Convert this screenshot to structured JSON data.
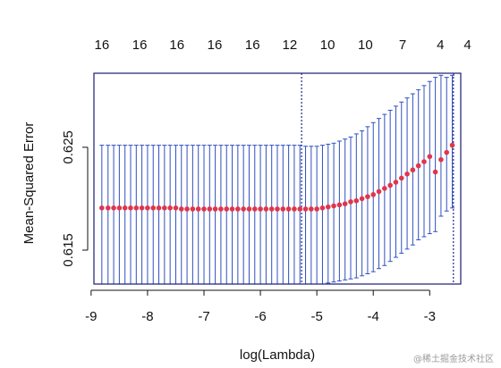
{
  "chart_data": {
    "type": "scatter",
    "xlabel": "log(Lambda)",
    "ylabel": "Mean-Squared Error",
    "xlim": [
      -8.95,
      -2.45
    ],
    "ylim": [
      0.6117,
      0.6322
    ],
    "xticks": [
      -9,
      -8,
      -7,
      -6,
      -5,
      -4,
      -3
    ],
    "yticks": [
      0.615,
      0.625
    ],
    "ytick_labels": [
      "0.615",
      "0.625"
    ],
    "top_axis": {
      "positions": [
        -8.81,
        -8.14,
        -7.48,
        -6.81,
        -6.14,
        -5.48,
        -4.81,
        -4.14,
        -3.48,
        -2.81,
        -2.33
      ],
      "labels": [
        "16",
        "16",
        "16",
        "16",
        "16",
        "12",
        "10",
        "10",
        "7",
        "4",
        "4"
      ]
    },
    "vlines": [
      -5.27,
      -2.58
    ],
    "colors": {
      "points": "#e0354c",
      "errorbars": "#3050c0",
      "frame": "#1a1a6e",
      "vline": "#1a2a8a"
    },
    "series": [
      {
        "x": [
          -8.81,
          -8.7,
          -8.6,
          -8.5,
          -8.4,
          -8.3,
          -8.2,
          -8.1,
          -8.0,
          -7.9,
          -7.8,
          -7.7,
          -7.6,
          -7.5,
          -7.4,
          -7.3,
          -7.2,
          -7.1,
          -7.0,
          -6.9,
          -6.8,
          -6.7,
          -6.6,
          -6.5,
          -6.4,
          -6.3,
          -6.2,
          -6.1,
          -6.0,
          -5.9,
          -5.8,
          -5.7,
          -5.6,
          -5.5,
          -5.4,
          -5.3,
          -5.2,
          -5.1,
          -5.0,
          -4.9,
          -4.8,
          -4.7,
          -4.6,
          -4.5,
          -4.4,
          -4.3,
          -4.2,
          -4.1,
          -4.0,
          -3.9,
          -3.8,
          -3.7,
          -3.6,
          -3.5,
          -3.4,
          -3.3,
          -3.2,
          -3.1,
          -3.0,
          -2.9,
          -2.8,
          -2.7,
          -2.6
        ],
        "y": [
          0.6191,
          0.6191,
          0.6191,
          0.6191,
          0.6191,
          0.6191,
          0.6191,
          0.6191,
          0.6191,
          0.6191,
          0.6191,
          0.6191,
          0.6191,
          0.6191,
          0.619,
          0.619,
          0.619,
          0.619,
          0.619,
          0.619,
          0.619,
          0.619,
          0.619,
          0.619,
          0.619,
          0.619,
          0.619,
          0.619,
          0.619,
          0.619,
          0.619,
          0.619,
          0.619,
          0.619,
          0.619,
          0.619,
          0.619,
          0.619,
          0.619,
          0.6191,
          0.6192,
          0.6193,
          0.6194,
          0.6195,
          0.6197,
          0.6198,
          0.62,
          0.6202,
          0.6204,
          0.6207,
          0.621,
          0.6213,
          0.6216,
          0.622,
          0.6224,
          0.6228,
          0.6232,
          0.6236,
          0.6241,
          0.6226,
          0.6238,
          0.6245,
          0.6252
        ],
        "err_low": [
          0.6117,
          0.6117,
          0.6117,
          0.6117,
          0.6117,
          0.6117,
          0.6117,
          0.6117,
          0.6117,
          0.6117,
          0.6117,
          0.6117,
          0.6117,
          0.6117,
          0.6117,
          0.6117,
          0.6117,
          0.6117,
          0.6117,
          0.6117,
          0.6117,
          0.6117,
          0.6117,
          0.6117,
          0.6117,
          0.6117,
          0.6117,
          0.6117,
          0.6117,
          0.6117,
          0.6117,
          0.6117,
          0.6117,
          0.6117,
          0.6117,
          0.6117,
          0.6117,
          0.6117,
          0.6117,
          0.6117,
          0.6118,
          0.6119,
          0.612,
          0.6121,
          0.6122,
          0.6123,
          0.6125,
          0.6127,
          0.6129,
          0.6132,
          0.6135,
          0.6139,
          0.6143,
          0.6147,
          0.6151,
          0.6155,
          0.616,
          0.6163,
          0.6166,
          0.6168,
          0.6183,
          0.6188,
          0.6191
        ],
        "err_high": [
          0.6252,
          0.6252,
          0.6252,
          0.6252,
          0.6252,
          0.6252,
          0.6252,
          0.6252,
          0.6252,
          0.6252,
          0.6252,
          0.6252,
          0.6252,
          0.6252,
          0.6252,
          0.6252,
          0.6252,
          0.6252,
          0.6252,
          0.6252,
          0.6252,
          0.6252,
          0.6252,
          0.6252,
          0.6252,
          0.6252,
          0.6252,
          0.6252,
          0.6252,
          0.6252,
          0.6252,
          0.6252,
          0.6252,
          0.6252,
          0.6252,
          0.6252,
          0.6251,
          0.6251,
          0.6251,
          0.6252,
          0.6253,
          0.6254,
          0.6256,
          0.6258,
          0.626,
          0.6263,
          0.6266,
          0.627,
          0.6274,
          0.6278,
          0.6282,
          0.6286,
          0.629,
          0.6294,
          0.6298,
          0.6302,
          0.6306,
          0.631,
          0.6314,
          0.6318,
          0.632,
          0.6318,
          0.632
        ]
      }
    ]
  },
  "watermark": "@稀土掘金技术社区"
}
